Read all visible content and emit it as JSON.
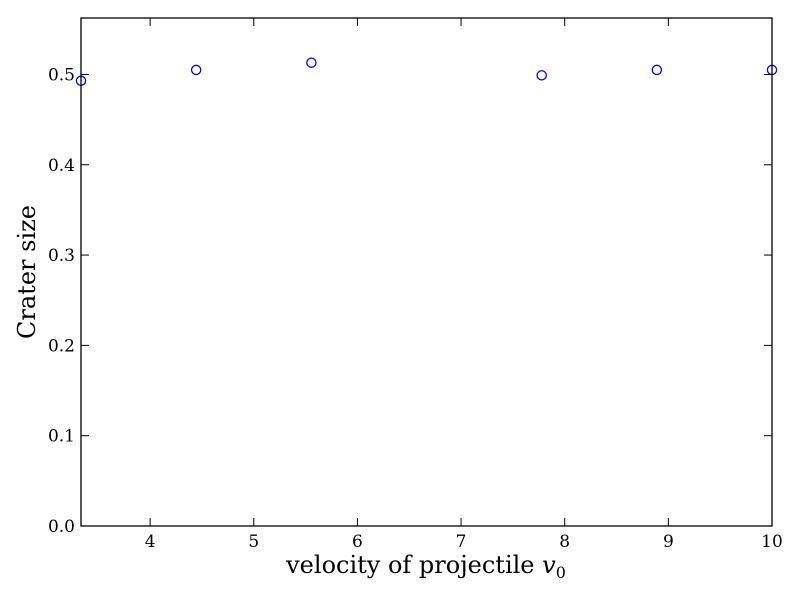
{
  "chart_data": {
    "type": "scatter",
    "title": "",
    "xlabel": "velocity of projectile ",
    "xlabel_symbol": "v",
    "xlabel_subscript": "0",
    "ylabel": "Crater size",
    "xlim": [
      3.333,
      10
    ],
    "ylim": [
      0.0,
      0.5625
    ],
    "xticks": [
      4,
      5,
      6,
      7,
      8,
      9,
      10
    ],
    "xtick_labels": [
      "4",
      "5",
      "6",
      "7",
      "8",
      "9",
      "10"
    ],
    "yticks": [
      0.0,
      0.1,
      0.2,
      0.3,
      0.4,
      0.5
    ],
    "ytick_labels": [
      "0.0",
      "0.1",
      "0.2",
      "0.3",
      "0.4",
      "0.5"
    ],
    "grid": false,
    "legend": null,
    "series": [
      {
        "name": "crater size",
        "marker": "circle-open",
        "color": "#0000ff",
        "x": [
          3.333,
          4.444,
          5.556,
          7.778,
          8.889,
          10.0
        ],
        "y": [
          0.493,
          0.505,
          0.513,
          0.499,
          0.505,
          0.505
        ]
      }
    ]
  }
}
